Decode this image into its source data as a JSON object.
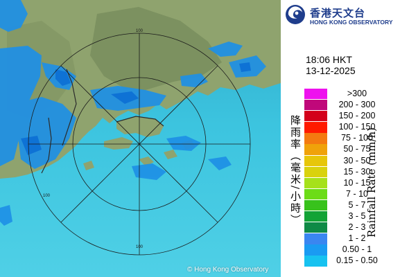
{
  "map": {
    "copyright": "© Hong Kong Observatory",
    "range_ring_label": "100",
    "colors": {
      "sea": "#3cc4df",
      "sea_deep": "#2fb3d6",
      "land": "#8fa36e",
      "land_dark": "#6f8656",
      "rain_light": "#1e90e6",
      "rain_mid": "#0c6fd4",
      "ring": "#1a1a1a",
      "coast": "#2b2b2b"
    }
  },
  "header": {
    "logo_cn": "香港天文台",
    "logo_en": "HONG KONG OBSERVATORY",
    "logo_icon": "hko-logo-icon"
  },
  "timestamp": {
    "time": "18:06 HKT",
    "date": "13-12-2025"
  },
  "legend": {
    "title_cn": "降雨率（毫米/小時）",
    "title_en": "Rainfall Rate (mm/h)",
    "items": [
      {
        "label": ">300",
        "color": "#ee11ee"
      },
      {
        "label": "200 - 300",
        "color": "#c0087a"
      },
      {
        "label": "150 - 200",
        "color": "#d3001a"
      },
      {
        "label": "100 - 150",
        "color": "#ff1a00"
      },
      {
        "label": "75 - 100",
        "color": "#f47a10"
      },
      {
        "label": "50 - 75",
        "color": "#f0a20a"
      },
      {
        "label": "30 - 50",
        "color": "#e7c60a"
      },
      {
        "label": "15 - 30",
        "color": "#d9d20d"
      },
      {
        "label": "10 - 15",
        "color": "#a6e11b"
      },
      {
        "label": "7 - 10",
        "color": "#6cdc17"
      },
      {
        "label": "5 - 7",
        "color": "#38c21c"
      },
      {
        "label": "3 - 5",
        "color": "#13a336"
      },
      {
        "label": "2 - 3",
        "color": "#0f8a46"
      },
      {
        "label": "1 - 2",
        "color": "#3a86f0"
      },
      {
        "label": "0.50 - 1",
        "color": "#1a9bf2"
      },
      {
        "label": "0.15 - 0.50",
        "color": "#17c2f0"
      }
    ]
  }
}
